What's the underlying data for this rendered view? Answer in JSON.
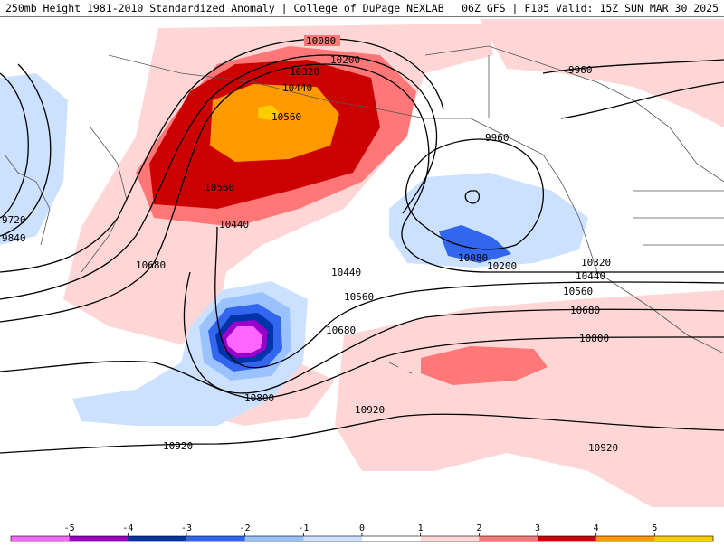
{
  "header": {
    "left_title": "250mb Height 1981-2010 Standardized Anomaly | College of DuPage NEXLAB",
    "right_title": "06Z GFS | F105 Valid: 15Z SUN MAR 30 2025"
  },
  "contour_labels": [
    "10080",
    "10200",
    "10320",
    "10440",
    "10560",
    "9960",
    "9960",
    "10560",
    "10440",
    "9720",
    "9840",
    "10680",
    "10440",
    "10560",
    "10680",
    "10800",
    "10920",
    "10920",
    "10080",
    "10200",
    "10320",
    "10440",
    "10560",
    "10680",
    "10800",
    "10920"
  ],
  "colorbar": {
    "labels": [
      "-5",
      "-4",
      "-3",
      "-2",
      "-1",
      "0",
      "1",
      "2",
      "3",
      "4",
      "5"
    ],
    "colors": [
      "#ff66ff",
      "#9900cc",
      "#0033aa",
      "#3366ee",
      "#99c2ff",
      "#cce0ff",
      "#ffffff",
      "#ffd6d6",
      "#ff7777",
      "#cc0000",
      "#ff9900",
      "#ffcc00"
    ]
  }
}
